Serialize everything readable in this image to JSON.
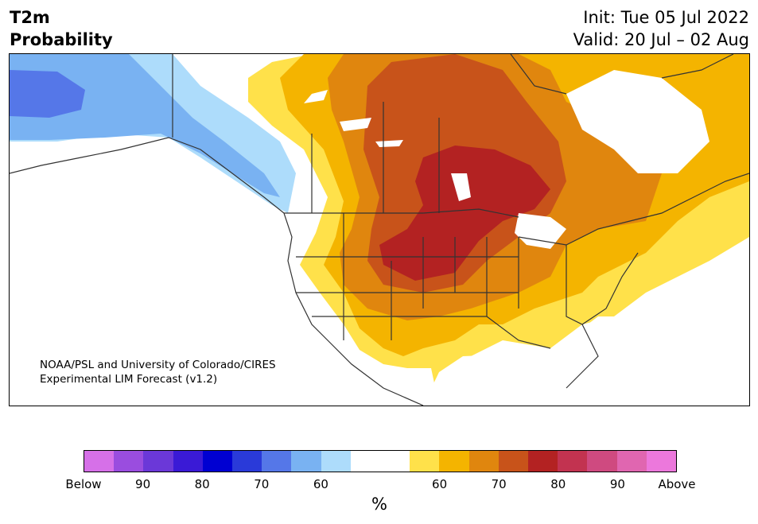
{
  "header": {
    "title_line1": "T2m",
    "title_line2": "Probability",
    "init": "Init: Tue 05 Jul 2022",
    "valid": "Valid: 20 Jul – 02 Aug"
  },
  "credit": {
    "line1": "NOAA/PSL and University of Colorado/CIRES",
    "line2": "Experimental LIM Forecast (v1.2)"
  },
  "legend": {
    "unit": "%",
    "colors": [
      "#d670e8",
      "#9a4ddf",
      "#6b38d8",
      "#3a1ad6",
      "#0000d2",
      "#2a3ad9",
      "#5577e8",
      "#79b2f2",
      "#addcfb",
      "#ffffff",
      "#ffffff",
      "#ffe14a",
      "#f4b400",
      "#e0860e",
      "#c8531a",
      "#b32222",
      "#c23350",
      "#cf4a80",
      "#e066b0",
      "#ec78dc"
    ],
    "labels": [
      "Below",
      "90",
      "80",
      "70",
      "60",
      "60",
      "70",
      "80",
      "90",
      "Above"
    ]
  },
  "regions": {
    "cold_alaska": "Below normal probability over Alaska and Pacific Northwest coast",
    "warm_center": "Above normal probability over central United States and Canada"
  }
}
